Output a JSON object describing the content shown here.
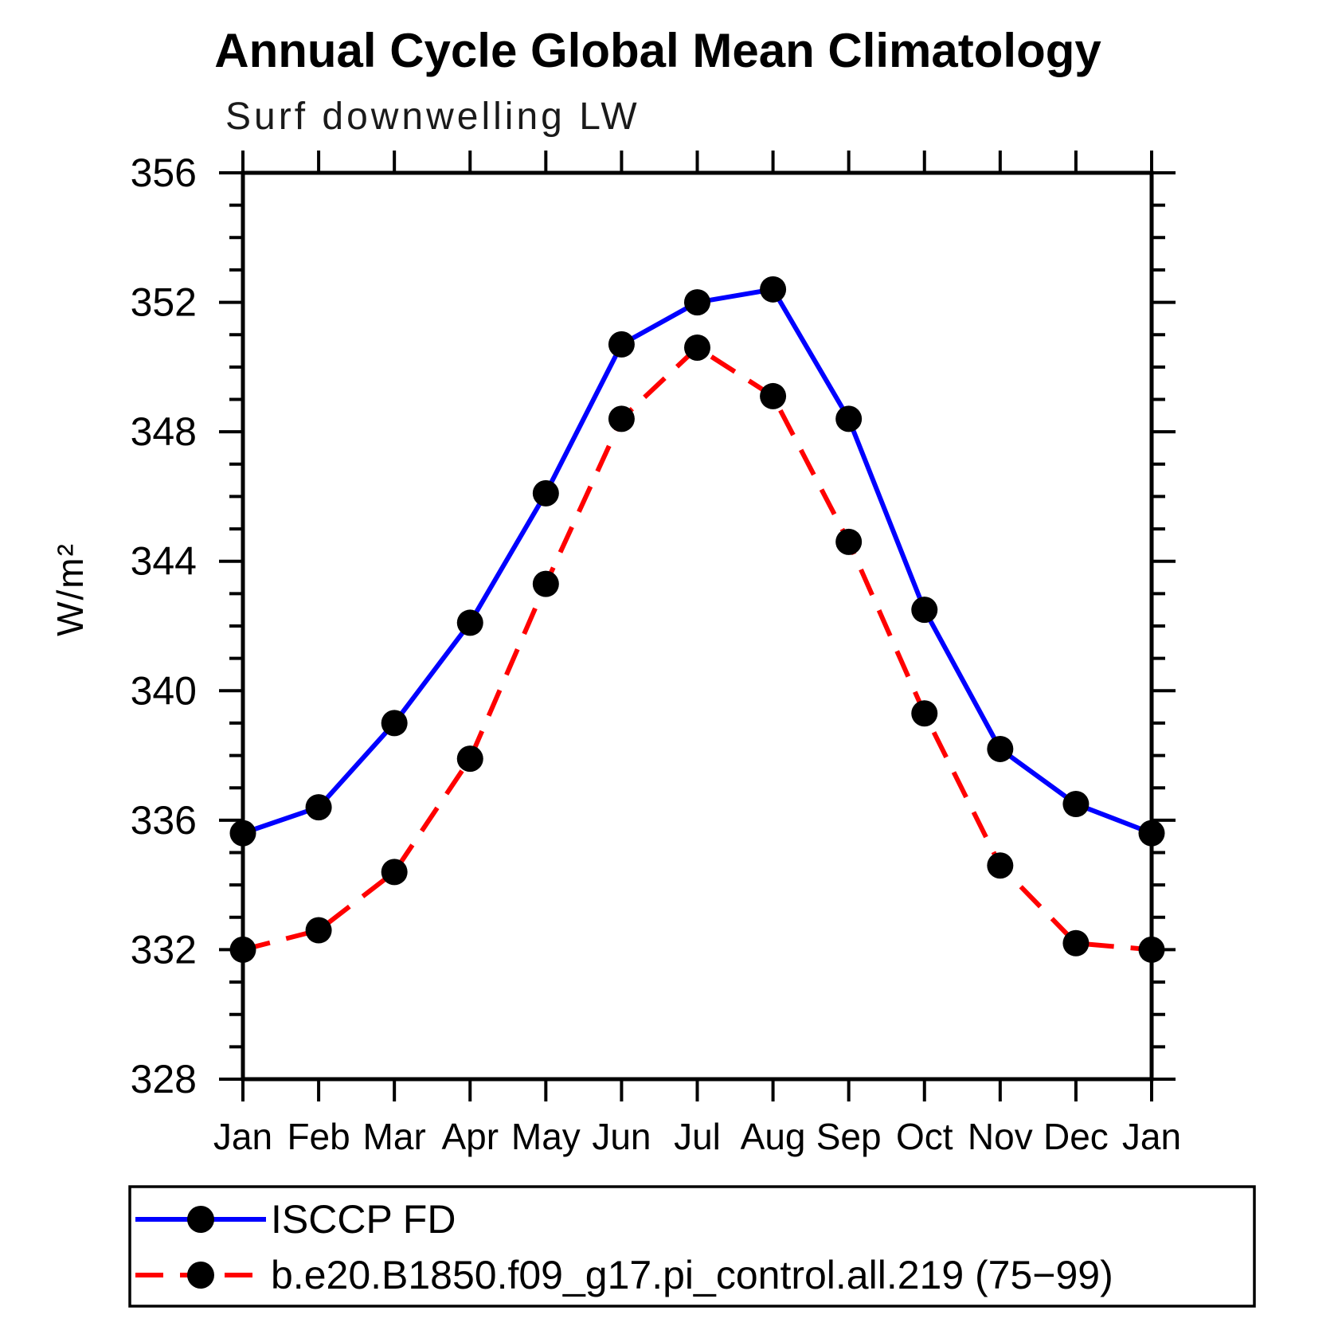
{
  "title": "Annual Cycle Global Mean Climatology",
  "subtitle": "Surf downwelling LW",
  "chart_data": {
    "type": "line",
    "title": "Annual Cycle Global Mean Climatology",
    "subtitle": "Surf downwelling LW",
    "xlabel": "",
    "ylabel": "W/m²",
    "categories": [
      "Jan",
      "Feb",
      "Mar",
      "Apr",
      "May",
      "Jun",
      "Jul",
      "Aug",
      "Sep",
      "Oct",
      "Nov",
      "Dec",
      "Jan"
    ],
    "series": [
      {
        "name": "ISCCP FD",
        "color": "#0000ff",
        "line_style": "solid",
        "marker": "black-dot",
        "values": [
          335.6,
          336.4,
          339.0,
          342.1,
          346.1,
          350.7,
          352.0,
          352.4,
          348.4,
          342.5,
          338.2,
          336.5,
          335.6
        ]
      },
      {
        "name": "b.e20.B1850.f09_g17.pi_control.all.219 (75−99)",
        "color": "#ff0000",
        "line_style": "dashed",
        "marker": "black-dot",
        "values": [
          332.0,
          332.6,
          334.4,
          337.9,
          343.3,
          348.4,
          350.6,
          349.1,
          344.6,
          339.3,
          334.6,
          332.2,
          332.0
        ]
      }
    ],
    "ylim": [
      328,
      356
    ],
    "y_major_step": 4,
    "y_minor_step": 1,
    "grid": false,
    "legend_position": "bottom",
    "marker_color": "#000000",
    "axis_color": "#000000"
  }
}
